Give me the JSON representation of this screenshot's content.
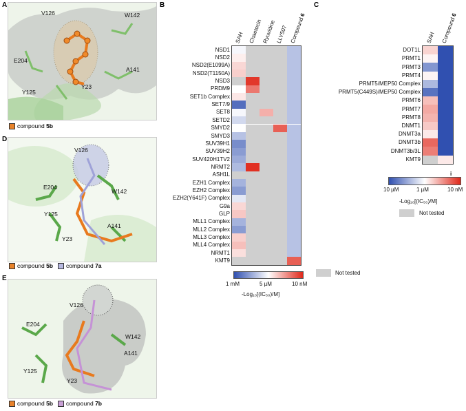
{
  "panels": {
    "A": {
      "letter": "A",
      "residues": [
        "V126",
        "W142",
        "E204",
        "A141",
        "Y125",
        "Y23"
      ],
      "legend": [
        {
          "label": "compound ",
          "bold": "5b",
          "color": "#e8822a"
        }
      ]
    },
    "D": {
      "letter": "D",
      "residues": [
        "V126",
        "E204",
        "W142",
        "Y125",
        "A141",
        "Y23"
      ],
      "legend": [
        {
          "label": "compound ",
          "bold": "5b",
          "color": "#e8822a"
        },
        {
          "label": "compound ",
          "bold": "7a",
          "color": "#b7b8e0"
        }
      ]
    },
    "E": {
      "letter": "E",
      "residues": [
        "V126",
        "E204",
        "W142",
        "A141",
        "Y125",
        "Y23"
      ],
      "legend": [
        {
          "label": "compound ",
          "bold": "5b",
          "color": "#e8822a"
        },
        {
          "label": "compound ",
          "bold": "7b",
          "color": "#c9a0d6"
        }
      ]
    }
  },
  "heatmapB": {
    "letter": "B",
    "columns": [
      {
        "label": "SAH"
      },
      {
        "label": "Chaetocin"
      },
      {
        "label": "Ryuvidine"
      },
      {
        "label": "LLY507"
      },
      {
        "label": "Compound ",
        "bold": "6"
      }
    ],
    "rows": [
      "NSD1",
      "NSD2",
      "NSD2(E1099A)",
      "NSD2(T1150A)",
      "NSD3",
      "PRDM9",
      "SET1b Complex",
      "SET7/9",
      "SET8",
      "SETD2",
      "SMYD2",
      "SMYD3",
      "SUV39H1",
      "SUV39H2",
      "SUV420H1TV2",
      "NRMT2",
      "ASH1L",
      "EZH1 Complex",
      "EZH2 Complex",
      "EZH2(Y641F) Complex",
      "G9a",
      "GLP",
      "MLL1 Complex",
      "MLL2 Complex",
      "MLL3 Complex",
      "MLL4 Complex",
      "NRMT1",
      "KMT9"
    ],
    "colorbar": {
      "ticks": [
        "1 mM",
        "5 µM",
        "10 nM"
      ],
      "title": "-Log₁₀[(IC₅₀)/M]"
    },
    "not_tested": "Not tested"
  },
  "heatmapC": {
    "letter": "C",
    "columns": [
      {
        "label": "SAH"
      },
      {
        "label": "Compound ",
        "bold": "6"
      }
    ],
    "rows": [
      "DOT1L",
      "PRMT1",
      "PRMT3",
      "PRMT4",
      "PRMT5/MEP50 Complex",
      "PRMT5(C449S)/MEP50 Complex",
      "PRMT6",
      "PRMT7",
      "PRMT8",
      "DNMT1",
      "DNMT3a",
      "DNMT3b",
      "DNMT3b/3L",
      "KMT9"
    ],
    "marker": "i",
    "colorbar": {
      "ticks": [
        "10 µM",
        "1 µM",
        "10 nM"
      ],
      "title": "-Log₁₀[(IC₅₀)/M]"
    },
    "not_tested": "Not tested"
  },
  "chart_data": [
    {
      "type": "heatmap",
      "panel": "B",
      "x": [
        "SAH",
        "Chaetocin",
        "Ryuvidine",
        "LLY507",
        "Compound 6"
      ],
      "y": [
        "NSD1",
        "NSD2",
        "NSD2(E1099A)",
        "NSD2(T1150A)",
        "NSD3",
        "PRDM9",
        "SET1b Complex",
        "SET7/9",
        "SET8",
        "SETD2",
        "SMYD2",
        "SMYD3",
        "SUV39H1",
        "SUV39H2",
        "SUV420H1TV2",
        "NRMT2",
        "ASH1L",
        "EZH1 Complex",
        "EZH2 Complex",
        "EZH2(Y641F) Complex",
        "G9a",
        "GLP",
        "MLL1 Complex",
        "MLL2 Complex",
        "MLL3 Complex",
        "MLL4 Complex",
        "NRMT1",
        "KMT9"
      ],
      "value_scale": {
        "min": 3,
        "mid": 5.3,
        "max": 8
      },
      "values": [
        [
          5.2,
          null,
          null,
          null,
          4.5
        ],
        [
          5.5,
          null,
          null,
          null,
          4.5
        ],
        [
          5.8,
          null,
          null,
          null,
          4.5
        ],
        [
          5.9,
          null,
          null,
          null,
          4.5
        ],
        [
          null,
          7.8,
          null,
          null,
          4.5
        ],
        [
          5.3,
          7.0,
          null,
          null,
          4.5
        ],
        [
          5.6,
          null,
          null,
          null,
          4.5
        ],
        [
          3.4,
          null,
          null,
          null,
          4.5
        ],
        [
          5.2,
          null,
          6.3,
          null,
          4.5
        ],
        [
          4.8,
          null,
          null,
          null,
          4.5
        ],
        [
          5.3,
          null,
          null,
          7.3,
          4.5
        ],
        [
          4.5,
          null,
          null,
          null,
          4.5
        ],
        [
          3.8,
          null,
          null,
          null,
          4.5
        ],
        [
          4.0,
          null,
          null,
          null,
          4.5
        ],
        [
          4.2,
          null,
          null,
          null,
          4.5
        ],
        [
          4.4,
          7.9,
          null,
          null,
          4.5
        ],
        [
          null,
          null,
          null,
          null,
          4.5
        ],
        [
          4.3,
          null,
          null,
          null,
          4.5
        ],
        [
          4.0,
          null,
          null,
          null,
          4.5
        ],
        [
          5.0,
          null,
          null,
          null,
          4.5
        ],
        [
          5.8,
          null,
          null,
          null,
          4.5
        ],
        [
          6.0,
          null,
          null,
          null,
          4.5
        ],
        [
          4.3,
          null,
          null,
          null,
          4.5
        ],
        [
          4.0,
          null,
          null,
          null,
          4.5
        ],
        [
          5.9,
          null,
          null,
          null,
          4.5
        ],
        [
          6.1,
          null,
          null,
          null,
          4.5
        ],
        [
          5.7,
          null,
          null,
          null,
          4.5
        ],
        [
          null,
          null,
          null,
          null,
          7.3
        ]
      ]
    },
    {
      "type": "heatmap",
      "panel": "C",
      "x": [
        "SAH",
        "Compound 6"
      ],
      "y": [
        "DOT1L",
        "PRMT1",
        "PRMT3",
        "PRMT4",
        "PRMT5/MEP50 Complex",
        "PRMT5(C449S)/MEP50 Complex",
        "PRMT6",
        "PRMT7",
        "PRMT8",
        "DNMT1",
        "DNMT3a",
        "DNMT3b",
        "DNMT3b/3L",
        "KMT9"
      ],
      "value_scale": {
        "min": 5,
        "mid": 6,
        "max": 8
      },
      "values": [
        [
          6.4,
          5.0
        ],
        [
          6.1,
          5.0
        ],
        [
          5.4,
          5.0
        ],
        [
          6.1,
          5.0
        ],
        [
          5.6,
          5.0
        ],
        [
          5.2,
          5.0
        ],
        [
          6.6,
          5.0
        ],
        [
          6.8,
          5.0
        ],
        [
          6.7,
          5.0
        ],
        [
          6.5,
          5.0
        ],
        [
          6.2,
          5.0
        ],
        [
          7.4,
          5.0
        ],
        [
          7.2,
          5.0
        ],
        [
          null,
          6.2
        ]
      ]
    }
  ]
}
